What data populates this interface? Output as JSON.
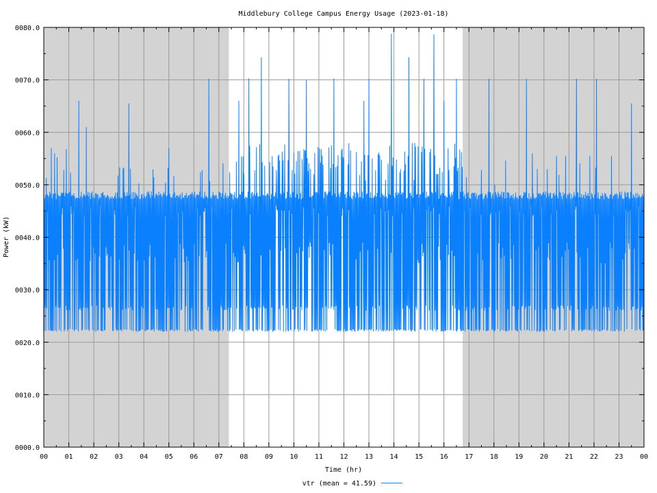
{
  "chart_data": {
    "type": "line",
    "title": "Middlebury College Campus Energy Usage (2023-01-18)",
    "xlabel": "Time (hr)",
    "ylabel": "Power (kW)",
    "xlim": [
      0,
      24
    ],
    "ylim": [
      0,
      80
    ],
    "x_ticks": [
      "00",
      "01",
      "02",
      "03",
      "04",
      "05",
      "06",
      "07",
      "08",
      "09",
      "10",
      "11",
      "12",
      "13",
      "14",
      "15",
      "16",
      "17",
      "18",
      "19",
      "20",
      "21",
      "22",
      "23",
      "00"
    ],
    "y_ticks": [
      "0000.0",
      "0010.0",
      "0020.0",
      "0030.0",
      "0040.0",
      "0050.0",
      "0060.0",
      "0070.0",
      "0080.0"
    ],
    "grid": true,
    "shaded_hours": [
      [
        0,
        7.4
      ],
      [
        16.75,
        24
      ]
    ],
    "shade_color": "#d3d3d3",
    "series": [
      {
        "name": "vtr",
        "legend_label": "vtr (mean = 41.59)",
        "color": "#0a80ff",
        "mean": 41.59,
        "base_levels": [
          22,
          26,
          35,
          44,
          48
        ],
        "peaks": [
          {
            "x": 0.3,
            "y": 57
          },
          {
            "x": 1.4,
            "y": 66
          },
          {
            "x": 1.7,
            "y": 61
          },
          {
            "x": 3.4,
            "y": 65.5
          },
          {
            "x": 5.0,
            "y": 57
          },
          {
            "x": 6.6,
            "y": 70.2
          },
          {
            "x": 7.8,
            "y": 66
          },
          {
            "x": 8.2,
            "y": 70.3
          },
          {
            "x": 8.7,
            "y": 74.3
          },
          {
            "x": 9.8,
            "y": 70.2
          },
          {
            "x": 10.5,
            "y": 70.0
          },
          {
            "x": 11.6,
            "y": 70.3
          },
          {
            "x": 12.8,
            "y": 66
          },
          {
            "x": 13.0,
            "y": 70.2
          },
          {
            "x": 13.9,
            "y": 78.8
          },
          {
            "x": 14.6,
            "y": 74.3
          },
          {
            "x": 15.2,
            "y": 70.2
          },
          {
            "x": 15.6,
            "y": 78.7
          },
          {
            "x": 16.0,
            "y": 66
          },
          {
            "x": 16.5,
            "y": 70.2
          },
          {
            "x": 17.8,
            "y": 70.2
          },
          {
            "x": 19.3,
            "y": 70.2
          },
          {
            "x": 21.3,
            "y": 70.2
          },
          {
            "x": 22.1,
            "y": 70.2
          },
          {
            "x": 23.5,
            "y": 65.5
          }
        ]
      }
    ],
    "legend_position": "bottom-center"
  }
}
